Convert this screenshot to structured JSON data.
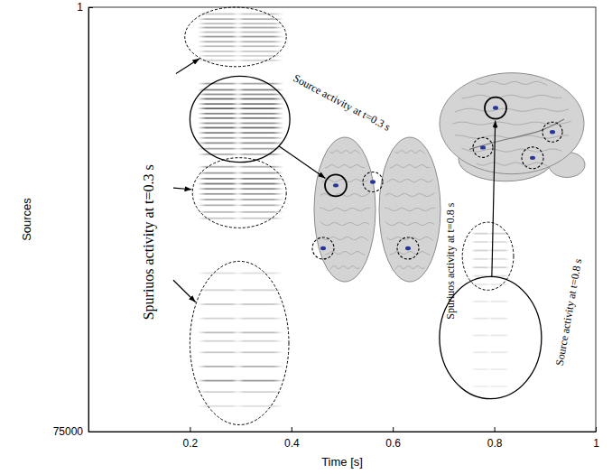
{
  "chart_data": {
    "type": "heatmap",
    "xlabel": "Time [s]",
    "ylabel": "Sources",
    "xlim": [
      0,
      1
    ],
    "ylim": [
      75000,
      1
    ],
    "xticks": [
      0.2,
      0.4,
      0.6,
      0.8,
      1
    ],
    "yticks": [
      1,
      75000
    ],
    "activity": [
      {
        "time_window": [
          0.215,
          0.385
        ],
        "sources": [
          1200,
          2100,
          2900,
          3600,
          4400,
          5200,
          6100,
          6900,
          7800,
          8600,
          9400,
          13500,
          14600,
          15400,
          16200,
          17100,
          17900,
          18800,
          19600,
          20500,
          21300,
          22200,
          23100,
          24000,
          25000,
          26000,
          28200,
          29300,
          30300,
          31200,
          32100,
          33000,
          34000,
          35000,
          36200,
          37300,
          47000,
          50000,
          52500,
          55000,
          57500,
          59000,
          61000,
          63500,
          66000,
          68000,
          70500
        ],
        "intensity": [
          0.25,
          0.35,
          0.3,
          0.4,
          0.3,
          0.45,
          0.35,
          0.3,
          0.25,
          0.2,
          0.2,
          0.4,
          0.55,
          0.5,
          0.65,
          0.6,
          0.7,
          0.55,
          0.6,
          0.5,
          0.65,
          0.55,
          0.45,
          0.5,
          0.4,
          0.35,
          0.35,
          0.45,
          0.55,
          0.6,
          0.5,
          0.45,
          0.4,
          0.35,
          0.3,
          0.25,
          0.15,
          0.2,
          0.25,
          0.2,
          0.3,
          0.2,
          0.25,
          0.35,
          0.45,
          0.2,
          0.15
        ]
      },
      {
        "time_window": [
          0.755,
          0.83
        ],
        "sources": [
          40000,
          41500,
          43000,
          44500,
          46000,
          47500,
          49000,
          52000,
          55000,
          58000,
          61000,
          64000,
          67000
        ],
        "intensity": [
          0.2,
          0.15,
          0.2,
          0.15,
          0.2,
          0.15,
          0.1,
          0.1,
          0.12,
          0.1,
          0.1,
          0.08,
          0.08
        ]
      }
    ],
    "annotations": [
      {
        "text": "Source activity at t=0.3 s",
        "regions": [
          {
            "x": [
              0.2,
              0.397
            ],
            "y": [
              12200,
              27400
            ],
            "line_style": "solid"
          }
        ]
      },
      {
        "text": "Spuriuos activity at t=0.3 s",
        "regions": [
          {
            "x": [
              0.19,
              0.39
            ],
            "y": [
              1,
              10500
            ],
            "line_style": "dashed"
          },
          {
            "x": [
              0.205,
              0.39
            ],
            "y": [
              26600,
              39000
            ],
            "line_style": "dashed"
          },
          {
            "x": [
              0.2,
              0.395
            ],
            "y": [
              44900,
              73800
            ],
            "line_style": "dashed"
          }
        ]
      },
      {
        "text": "Spuriuos activity at t=0.8 s",
        "regions": [
          {
            "x": [
              0.737,
              0.838
            ],
            "y": [
              38000,
              50000
            ],
            "line_style": "dashed"
          }
        ]
      },
      {
        "text": "Source activity at t=0.8 s",
        "regions": [
          {
            "x": [
              0.692,
              0.893
            ],
            "y": [
              47600,
              69200
            ],
            "line_style": "solid"
          }
        ]
      }
    ]
  }
}
